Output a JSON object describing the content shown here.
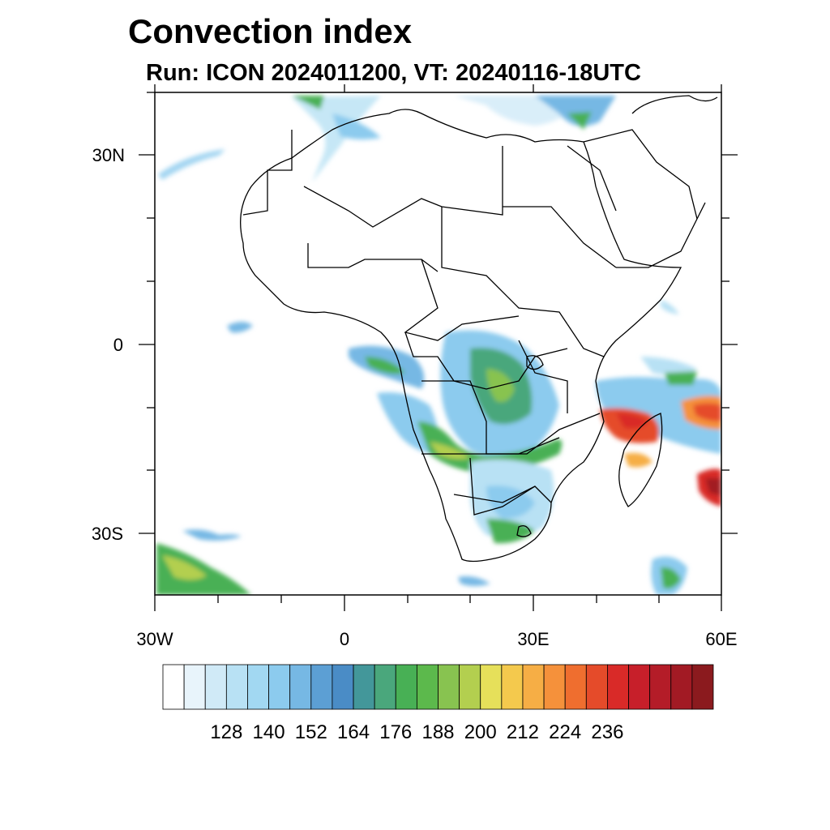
{
  "title": "Convection index",
  "subtitle": "Run: ICON 2024011200,  VT: 20240116-18UTC",
  "map": {
    "region": "Africa",
    "lon_range": [
      -30,
      60
    ],
    "lat_range": [
      -40,
      40
    ],
    "lat_ticks": [
      {
        "value": 30,
        "label": "30N"
      },
      {
        "value": 0,
        "label": "0"
      },
      {
        "value": -30,
        "label": "30S"
      }
    ],
    "lon_ticks": [
      {
        "value": -30,
        "label": "30W"
      },
      {
        "value": 0,
        "label": "0"
      },
      {
        "value": 30,
        "label": "30E"
      },
      {
        "value": 60,
        "label": "60E"
      }
    ]
  },
  "colorbar": {
    "colors": [
      "#ffffff",
      "#e8f4fb",
      "#d0eaf7",
      "#b8e1f4",
      "#a2d8f2",
      "#8ccbee",
      "#76b8e4",
      "#5c9fd4",
      "#4a8cc6",
      "#43979a",
      "#4aa77c",
      "#48b055",
      "#5cb94c",
      "#88c350",
      "#b3cf4f",
      "#e6e05a",
      "#f4c94d",
      "#f6ae45",
      "#f5913b",
      "#ef6e2f",
      "#e54b2a",
      "#d92a28",
      "#c71f2a",
      "#b41c28",
      "#a21a24",
      "#8b1a1e"
    ],
    "labels": [
      "128",
      "140",
      "152",
      "164",
      "176",
      "188",
      "200",
      "212",
      "224",
      "236"
    ]
  }
}
